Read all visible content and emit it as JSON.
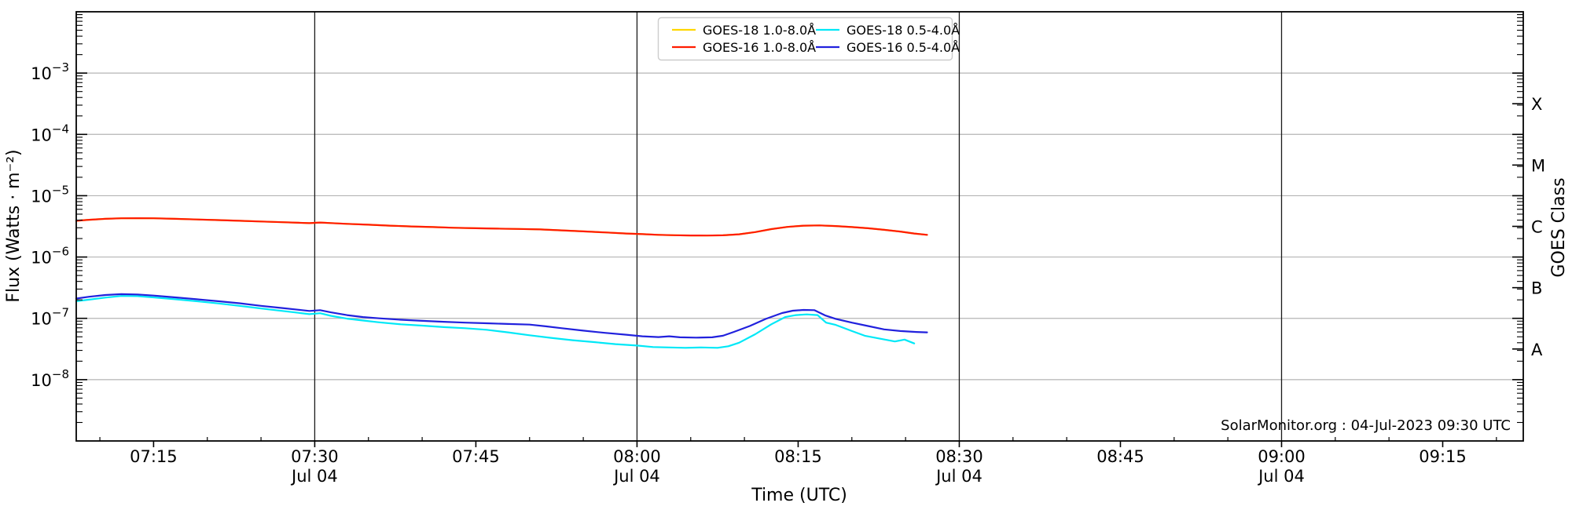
{
  "chart_data": {
    "type": "line",
    "title": "",
    "xlabel": "Time (UTC)",
    "ylabel": "Flux (Watts · m⁻²)",
    "ylabel_right": "GOES Class",
    "attribution": "SolarMonitor.org : 04-Jul-2023 09:30 UTC",
    "grid": "horizontal-decades",
    "legend_position": "top-center",
    "x_domain_minutes_after_0700": [
      7.8,
      142.5
    ],
    "y_domain": [
      1e-09,
      0.01
    ],
    "x_ticks": [
      {
        "t": 15,
        "label": "07:15"
      },
      {
        "t": 30,
        "label": "07:30",
        "sub": "Jul 04"
      },
      {
        "t": 45,
        "label": "07:45"
      },
      {
        "t": 60,
        "label": "08:00",
        "sub": "Jul 04"
      },
      {
        "t": 75,
        "label": "08:15"
      },
      {
        "t": 90,
        "label": "08:30",
        "sub": "Jul 04"
      },
      {
        "t": 105,
        "label": "08:45"
      },
      {
        "t": 120,
        "label": "09:00",
        "sub": "Jul 04"
      },
      {
        "t": 135,
        "label": "09:15"
      }
    ],
    "x_minor_step_minutes": 5,
    "y_tick_exponents": [
      -3,
      -4,
      -5,
      -6,
      -7,
      -8
    ],
    "goes_class_labels": [
      {
        "label": "X",
        "exponent": -3.5
      },
      {
        "label": "M",
        "exponent": -4.5
      },
      {
        "label": "C",
        "exponent": -5.5
      },
      {
        "label": "B",
        "exponent": -6.5
      },
      {
        "label": "A",
        "exponent": -7.5
      }
    ],
    "vertical_lines_t": [
      30,
      60,
      90,
      120
    ],
    "colors": {
      "grid": "#b4b4b4",
      "axis": "#000000",
      "day_line": "#1a1a1a",
      "legend_border": "#cccccc"
    },
    "series": [
      {
        "name": "GOES-18 1.0-8.0Å",
        "color": "#ffd600",
        "note": "coincident with GOES-16 1.0-8.0, hidden beneath it",
        "points": [
          [
            7.8,
            3.9e-06
          ],
          [
            9,
            4.05e-06
          ],
          [
            10.5,
            4.2e-06
          ],
          [
            12,
            4.28e-06
          ],
          [
            13.5,
            4.3e-06
          ],
          [
            15,
            4.28e-06
          ],
          [
            17,
            4.2e-06
          ],
          [
            19,
            4.1e-06
          ],
          [
            21,
            4e-06
          ],
          [
            23,
            3.9e-06
          ],
          [
            25,
            3.8e-06
          ],
          [
            27,
            3.7e-06
          ],
          [
            28.5,
            3.62e-06
          ],
          [
            29.5,
            3.57e-06
          ],
          [
            30.5,
            3.65e-06
          ],
          [
            31.5,
            3.58e-06
          ],
          [
            33,
            3.48e-06
          ],
          [
            35,
            3.36e-06
          ],
          [
            37,
            3.25e-06
          ],
          [
            39,
            3.15e-06
          ],
          [
            41,
            3.08e-06
          ],
          [
            43,
            3e-06
          ],
          [
            45,
            2.95e-06
          ],
          [
            47,
            2.9e-06
          ],
          [
            49,
            2.87e-06
          ],
          [
            51,
            2.82e-06
          ],
          [
            53,
            2.72e-06
          ],
          [
            55,
            2.62e-06
          ],
          [
            57,
            2.52e-06
          ],
          [
            59,
            2.42e-06
          ],
          [
            60.5,
            2.36e-06
          ],
          [
            62,
            2.3e-06
          ],
          [
            63.5,
            2.27e-06
          ],
          [
            65,
            2.25e-06
          ],
          [
            66.5,
            2.24e-06
          ],
          [
            68,
            2.26e-06
          ],
          [
            69.5,
            2.35e-06
          ],
          [
            71,
            2.55e-06
          ],
          [
            72.5,
            2.85e-06
          ],
          [
            74,
            3.1e-06
          ],
          [
            75.5,
            3.25e-06
          ],
          [
            77,
            3.28e-06
          ],
          [
            78.5,
            3.2e-06
          ],
          [
            80,
            3.08e-06
          ],
          [
            81.5,
            2.95e-06
          ],
          [
            83,
            2.78e-06
          ],
          [
            84.5,
            2.6e-06
          ],
          [
            85.8,
            2.42e-06
          ],
          [
            87,
            2.3e-06
          ]
        ]
      },
      {
        "name": "GOES-16 1.0-8.0Å",
        "color": "#ff1c00",
        "points": [
          [
            7.8,
            3.9e-06
          ],
          [
            9,
            4.05e-06
          ],
          [
            10.5,
            4.2e-06
          ],
          [
            12,
            4.28e-06
          ],
          [
            13.5,
            4.3e-06
          ],
          [
            15,
            4.28e-06
          ],
          [
            17,
            4.2e-06
          ],
          [
            19,
            4.1e-06
          ],
          [
            21,
            4e-06
          ],
          [
            23,
            3.9e-06
          ],
          [
            25,
            3.8e-06
          ],
          [
            27,
            3.7e-06
          ],
          [
            28.5,
            3.62e-06
          ],
          [
            29.5,
            3.57e-06
          ],
          [
            30.5,
            3.65e-06
          ],
          [
            31.5,
            3.58e-06
          ],
          [
            33,
            3.48e-06
          ],
          [
            35,
            3.36e-06
          ],
          [
            37,
            3.25e-06
          ],
          [
            39,
            3.15e-06
          ],
          [
            41,
            3.08e-06
          ],
          [
            43,
            3e-06
          ],
          [
            45,
            2.95e-06
          ],
          [
            47,
            2.9e-06
          ],
          [
            49,
            2.87e-06
          ],
          [
            51,
            2.82e-06
          ],
          [
            53,
            2.72e-06
          ],
          [
            55,
            2.62e-06
          ],
          [
            57,
            2.52e-06
          ],
          [
            59,
            2.42e-06
          ],
          [
            60.5,
            2.36e-06
          ],
          [
            62,
            2.3e-06
          ],
          [
            63.5,
            2.27e-06
          ],
          [
            65,
            2.25e-06
          ],
          [
            66.5,
            2.24e-06
          ],
          [
            68,
            2.26e-06
          ],
          [
            69.5,
            2.35e-06
          ],
          [
            71,
            2.55e-06
          ],
          [
            72.5,
            2.85e-06
          ],
          [
            74,
            3.1e-06
          ],
          [
            75.5,
            3.25e-06
          ],
          [
            77,
            3.28e-06
          ],
          [
            78.5,
            3.2e-06
          ],
          [
            80,
            3.08e-06
          ],
          [
            81.5,
            2.95e-06
          ],
          [
            83,
            2.78e-06
          ],
          [
            84.5,
            2.6e-06
          ],
          [
            85.8,
            2.42e-06
          ],
          [
            87,
            2.3e-06
          ]
        ]
      },
      {
        "name": "GOES-18 0.5-4.0Å",
        "color": "#00e8f7",
        "points": [
          [
            7.8,
            1.9e-07
          ],
          [
            9,
            2.02e-07
          ],
          [
            10.5,
            2.18e-07
          ],
          [
            12,
            2.32e-07
          ],
          [
            13.5,
            2.3e-07
          ],
          [
            15,
            2.2e-07
          ],
          [
            17,
            2.05e-07
          ],
          [
            19,
            1.9e-07
          ],
          [
            21,
            1.75e-07
          ],
          [
            23,
            1.6e-07
          ],
          [
            25,
            1.45e-07
          ],
          [
            27,
            1.32e-07
          ],
          [
            28.5,
            1.23e-07
          ],
          [
            29.5,
            1.17e-07
          ],
          [
            30.5,
            1.21e-07
          ],
          [
            31.5,
            1.1e-07
          ],
          [
            33,
            9.9e-08
          ],
          [
            34.5,
            9.2e-08
          ],
          [
            36,
            8.6e-08
          ],
          [
            38,
            8e-08
          ],
          [
            40,
            7.6e-08
          ],
          [
            42,
            7.2e-08
          ],
          [
            44,
            6.9e-08
          ],
          [
            46,
            6.5e-08
          ],
          [
            48,
            5.9e-08
          ],
          [
            50,
            5.3e-08
          ],
          [
            52,
            4.8e-08
          ],
          [
            54,
            4.4e-08
          ],
          [
            56,
            4.1e-08
          ],
          [
            58,
            3.8e-08
          ],
          [
            60,
            3.6e-08
          ],
          [
            61.5,
            3.4e-08
          ],
          [
            63,
            3.35e-08
          ],
          [
            64.5,
            3.3e-08
          ],
          [
            66,
            3.35e-08
          ],
          [
            67.5,
            3.3e-08
          ],
          [
            68.5,
            3.5e-08
          ],
          [
            69.5,
            4e-08
          ],
          [
            71,
            5.5e-08
          ],
          [
            72.5,
            8e-08
          ],
          [
            73.8,
            1.05e-07
          ],
          [
            74.8,
            1.13e-07
          ],
          [
            75.8,
            1.16e-07
          ],
          [
            76.8,
            1.13e-07
          ],
          [
            77.6,
            8.5e-08
          ],
          [
            78.5,
            7.8e-08
          ],
          [
            80,
            6.2e-08
          ],
          [
            81.2,
            5.2e-08
          ],
          [
            82.5,
            4.7e-08
          ],
          [
            84,
            4.2e-08
          ],
          [
            84.9,
            4.5e-08
          ],
          [
            85.8,
            3.9e-08
          ]
        ]
      },
      {
        "name": "GOES-16 0.5-4.0Å",
        "color": "#2121dd",
        "points": [
          [
            7.8,
            2.1e-07
          ],
          [
            9,
            2.25e-07
          ],
          [
            10.5,
            2.4e-07
          ],
          [
            12,
            2.48e-07
          ],
          [
            13.5,
            2.45e-07
          ],
          [
            15,
            2.35e-07
          ],
          [
            17,
            2.2e-07
          ],
          [
            19,
            2.05e-07
          ],
          [
            21,
            1.9e-07
          ],
          [
            23,
            1.76e-07
          ],
          [
            25,
            1.6e-07
          ],
          [
            27,
            1.47e-07
          ],
          [
            28.5,
            1.38e-07
          ],
          [
            29.5,
            1.32e-07
          ],
          [
            30.5,
            1.36e-07
          ],
          [
            31.5,
            1.25e-07
          ],
          [
            33,
            1.13e-07
          ],
          [
            34.5,
            1.05e-07
          ],
          [
            36,
            1e-07
          ],
          [
            38,
            9.5e-08
          ],
          [
            40,
            9.1e-08
          ],
          [
            42,
            8.8e-08
          ],
          [
            44,
            8.5e-08
          ],
          [
            46,
            8.3e-08
          ],
          [
            48,
            8.1e-08
          ],
          [
            50,
            7.9e-08
          ],
          [
            51.5,
            7.4e-08
          ],
          [
            53,
            6.9e-08
          ],
          [
            55,
            6.3e-08
          ],
          [
            57,
            5.8e-08
          ],
          [
            59,
            5.4e-08
          ],
          [
            60.5,
            5.1e-08
          ],
          [
            62,
            4.95e-08
          ],
          [
            63,
            5.1e-08
          ],
          [
            64,
            4.9e-08
          ],
          [
            65.5,
            4.85e-08
          ],
          [
            67,
            4.9e-08
          ],
          [
            68,
            5.2e-08
          ],
          [
            69,
            6e-08
          ],
          [
            70.5,
            7.5e-08
          ],
          [
            72,
            9.8e-08
          ],
          [
            73.5,
            1.22e-07
          ],
          [
            74.5,
            1.33e-07
          ],
          [
            75.5,
            1.37e-07
          ],
          [
            76.5,
            1.36e-07
          ],
          [
            77.5,
            1.12e-07
          ],
          [
            78.5,
            9.8e-08
          ],
          [
            80,
            8.5e-08
          ],
          [
            81.5,
            7.5e-08
          ],
          [
            83,
            6.6e-08
          ],
          [
            84.5,
            6.2e-08
          ],
          [
            86,
            6e-08
          ],
          [
            87,
            5.9e-08
          ]
        ]
      }
    ],
    "legend": {
      "columns": 2,
      "items": [
        {
          "label": "GOES-18 1.0-8.0Å",
          "color": "#ffd600"
        },
        {
          "label": "GOES-16 1.0-8.0Å",
          "color": "#ff1c00"
        },
        {
          "label": "GOES-18 0.5-4.0Å",
          "color": "#00e8f7"
        },
        {
          "label": "GOES-16 0.5-4.0Å",
          "color": "#2121dd"
        }
      ]
    }
  }
}
